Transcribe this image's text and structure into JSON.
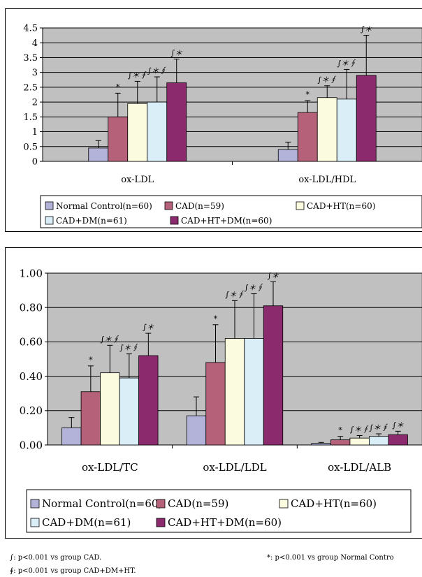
{
  "legend": [
    {
      "label": "Normal Control(n=60)",
      "color": "#b3b3d9"
    },
    {
      "label": "CAD(n=59)",
      "color": "#b5617a"
    },
    {
      "label": "CAD+HT(n=60)",
      "color": "#fbfbdf"
    },
    {
      "label": "CAD+DM(n=61)",
      "color": "#d9eef6"
    },
    {
      "label": "CAD+HT+DM(n=60)",
      "color": "#8b2a6c"
    }
  ],
  "chart_data": [
    {
      "type": "bar",
      "categories": [
        "ox-LDL",
        "ox-LDL/HDL"
      ],
      "ylim": [
        0,
        4.5
      ],
      "yticks": [
        "0",
        "0.5",
        "1",
        "1.5",
        "2",
        "2.5",
        "3",
        "3.5",
        "4",
        "4.5"
      ],
      "ytick_values": [
        0,
        0.5,
        1,
        1.5,
        2,
        2.5,
        3,
        3.5,
        4,
        4.5
      ],
      "grid": true,
      "legend_position": "bottom",
      "series": [
        {
          "name": "Normal Control(n=60)",
          "values": [
            0.45,
            0.4
          ],
          "errors": [
            0.25,
            0.25
          ],
          "marks": [
            "",
            ""
          ]
        },
        {
          "name": "CAD(n=59)",
          "values": [
            1.5,
            1.65
          ],
          "errors": [
            0.8,
            0.4
          ],
          "marks": [
            "*",
            "*"
          ]
        },
        {
          "name": "CAD+HT(n=60)",
          "values": [
            1.95,
            2.15
          ],
          "errors": [
            0.75,
            0.4
          ],
          "marks": [
            "∫＊∮",
            "∫＊∮"
          ]
        },
        {
          "name": "CAD+DM(n=61)",
          "values": [
            2.0,
            2.1
          ],
          "errors": [
            0.85,
            1.0
          ],
          "marks": [
            "∫＊∮",
            "∫＊∮"
          ]
        },
        {
          "name": "CAD+HT+DM(n=60)",
          "values": [
            2.65,
            2.9
          ],
          "errors": [
            0.8,
            1.35
          ],
          "marks": [
            "∫＊",
            "∫＊"
          ]
        }
      ]
    },
    {
      "type": "bar",
      "categories": [
        "ox-LDL/TC",
        "ox-LDL/LDL",
        "ox-LDL/ALB"
      ],
      "ylim": [
        0,
        1.0
      ],
      "yticks": [
        "0.00",
        "0.20",
        "0.40",
        "0.60",
        "0.80",
        "1.00"
      ],
      "ytick_values": [
        0,
        0.2,
        0.4,
        0.6,
        0.8,
        1.0
      ],
      "grid": true,
      "legend_position": "bottom",
      "series": [
        {
          "name": "Normal Control(n=60)",
          "values": [
            0.1,
            0.17,
            0.01
          ],
          "errors": [
            0.06,
            0.11,
            0.005
          ],
          "marks": [
            "",
            "",
            ""
          ]
        },
        {
          "name": "CAD(n=59)",
          "values": [
            0.31,
            0.48,
            0.03
          ],
          "errors": [
            0.15,
            0.22,
            0.02
          ],
          "marks": [
            "*",
            "*",
            "*"
          ]
        },
        {
          "name": "CAD+HT(n=60)",
          "values": [
            0.42,
            0.62,
            0.04
          ],
          "errors": [
            0.16,
            0.22,
            0.015
          ],
          "marks": [
            "∫＊∮",
            "∫＊∮",
            "∫＊∮"
          ]
        },
        {
          "name": "CAD+DM(n=61)",
          "values": [
            0.39,
            0.62,
            0.05
          ],
          "errors": [
            0.14,
            0.26,
            0.015
          ],
          "marks": [
            "∫＊∮",
            "∫＊∮",
            "∫＊∮"
          ]
        },
        {
          "name": "CAD+HT+DM(n=60)",
          "values": [
            0.52,
            0.81,
            0.06
          ],
          "errors": [
            0.13,
            0.14,
            0.02
          ],
          "marks": [
            "∫＊",
            "∫＊",
            "∫＊"
          ]
        }
      ]
    }
  ],
  "footnotes": {
    "f1": "∫: p<0.001 vs group CAD.",
    "f2": "∮: p<0.001 vs group CAD+DM+HT.",
    "f3": "*: p<0.001 vs group Normal Contro"
  }
}
